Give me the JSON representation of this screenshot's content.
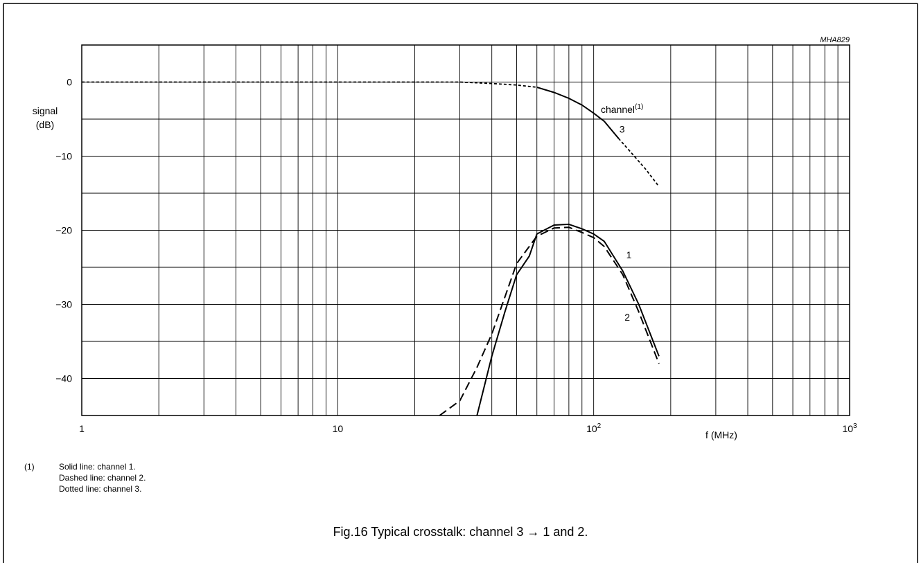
{
  "figure_code": "MHA829",
  "caption": "Fig.16  Typical crosstalk: channel 3 → 1 and 2.",
  "footnote": {
    "marker": "(1)",
    "lines": [
      "Solid line: channel 1.",
      "Dashed line: channel 2.",
      "Dotted line: channel 3."
    ]
  },
  "chart_data": {
    "type": "line",
    "title": "",
    "ylabel": [
      "signal",
      "(dB)"
    ],
    "xlabel": "f (MHz)",
    "x_scale": "log",
    "xlim": [
      1,
      1000
    ],
    "ylim": [
      -45,
      5
    ],
    "x_ticks": [
      {
        "value": 1,
        "label": "1"
      },
      {
        "value": 10,
        "label": "10"
      },
      {
        "value": 100,
        "label": "10",
        "exp": "2"
      },
      {
        "value": 1000,
        "label": "10",
        "exp": "3"
      }
    ],
    "y_ticks": [
      {
        "value": 0,
        "label": "0"
      },
      {
        "value": -10,
        "label": "−10"
      },
      {
        "value": -20,
        "label": "−20"
      },
      {
        "value": -30,
        "label": "−30"
      },
      {
        "value": -40,
        "label": "−40"
      }
    ],
    "grid": true,
    "series_annotation": {
      "text": "channel",
      "sup": "(1)"
    },
    "series": [
      {
        "label": "3",
        "style": "dotted-solid-dotted",
        "points": [
          [
            1,
            0
          ],
          [
            10,
            0
          ],
          [
            20,
            0
          ],
          [
            30,
            0
          ],
          [
            40,
            -0.2
          ],
          [
            50,
            -0.4
          ],
          [
            60,
            -0.7
          ],
          [
            70,
            -1.4
          ],
          [
            80,
            -2.2
          ],
          [
            90,
            -3.1
          ],
          [
            100,
            -4.2
          ],
          [
            110,
            -5.3
          ],
          [
            125,
            -7.6
          ],
          [
            140,
            -9.5
          ],
          [
            160,
            -11.8
          ],
          [
            180,
            -14.1
          ]
        ],
        "solid_range": [
          60,
          125
        ],
        "label_at": [
          126,
          -6.8
        ]
      },
      {
        "label": "1",
        "style": "solid",
        "points": [
          [
            35,
            -45
          ],
          [
            40,
            -37
          ],
          [
            45,
            -31
          ],
          [
            50,
            -26
          ],
          [
            56,
            -23.5
          ],
          [
            60,
            -20.5
          ],
          [
            70,
            -19.3
          ],
          [
            80,
            -19.2
          ],
          [
            90,
            -19.8
          ],
          [
            100,
            -20.5
          ],
          [
            110,
            -21.5
          ],
          [
            130,
            -25.5
          ],
          [
            150,
            -30
          ],
          [
            180,
            -37
          ]
        ],
        "label_at": [
          134,
          -23.8
        ]
      },
      {
        "label": "2",
        "style": "dashed",
        "points": [
          [
            25,
            -45
          ],
          [
            30,
            -43
          ],
          [
            35,
            -38.5
          ],
          [
            40,
            -34
          ],
          [
            45,
            -29
          ],
          [
            50,
            -24.5
          ],
          [
            60,
            -20.8
          ],
          [
            70,
            -19.7
          ],
          [
            80,
            -19.6
          ],
          [
            90,
            -20.3
          ],
          [
            100,
            -21
          ],
          [
            110,
            -22.2
          ],
          [
            130,
            -26
          ],
          [
            150,
            -31
          ],
          [
            180,
            -38
          ]
        ],
        "label_at": [
          132,
          -32.2
        ]
      }
    ]
  }
}
